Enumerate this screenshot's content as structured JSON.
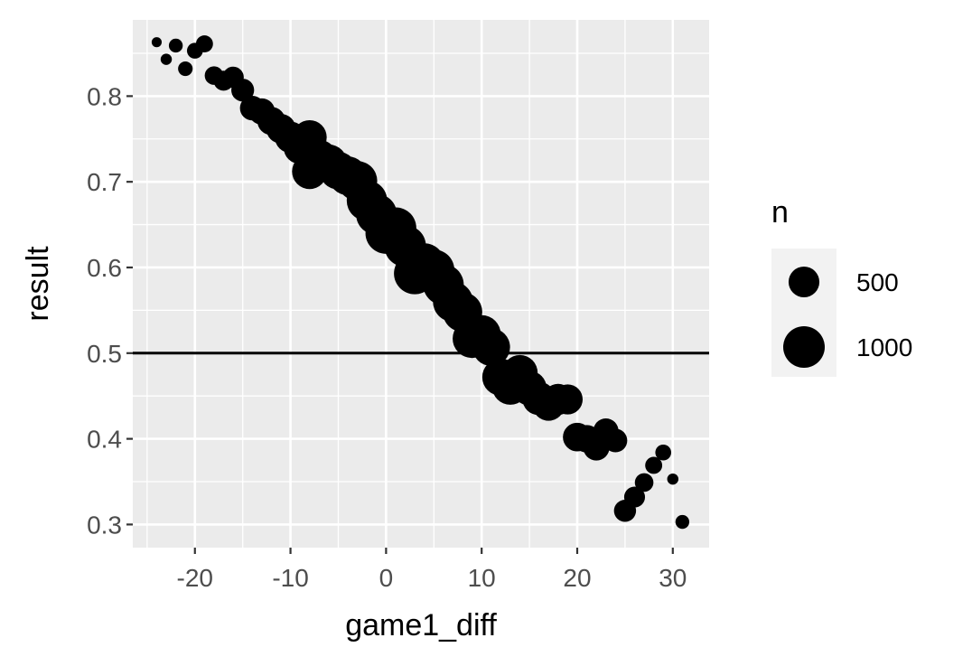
{
  "chart_data": {
    "type": "scatter",
    "title": "",
    "xlabel": "game1_diff",
    "ylabel": "result",
    "xlim": [
      -26.5,
      33.8
    ],
    "ylim": [
      0.273,
      0.889
    ],
    "x_ticks": [
      -20,
      -10,
      0,
      10,
      20,
      30
    ],
    "x_tick_labels": [
      "-20",
      "-10",
      "0",
      "10",
      "20",
      "30"
    ],
    "y_ticks": [
      0.3,
      0.4,
      0.5,
      0.6,
      0.7,
      0.8
    ],
    "y_tick_labels": [
      "0.3",
      "0.4",
      "0.5",
      "0.6",
      "0.7",
      "0.8"
    ],
    "grid": true,
    "reference_line": {
      "y": 0.5
    },
    "size_legend": {
      "title": "n",
      "placement": "right",
      "entries": [
        {
          "label": "500",
          "value": 500
        },
        {
          "label": "1000",
          "value": 1000
        }
      ]
    },
    "colors": {
      "panel": "#ebebeb",
      "grid": "#ffffff",
      "points": "#000000",
      "legend_key_bg": "#f2f2f2"
    },
    "points": [
      {
        "x": -24,
        "y": 0.863,
        "n": 20
      },
      {
        "x": -23,
        "y": 0.843,
        "n": 30
      },
      {
        "x": -22,
        "y": 0.859,
        "n": 60
      },
      {
        "x": -21,
        "y": 0.832,
        "n": 70
      },
      {
        "x": -20,
        "y": 0.853,
        "n": 90
      },
      {
        "x": -19,
        "y": 0.861,
        "n": 110
      },
      {
        "x": -18,
        "y": 0.824,
        "n": 140
      },
      {
        "x": -17,
        "y": 0.818,
        "n": 170
      },
      {
        "x": -16,
        "y": 0.822,
        "n": 200
      },
      {
        "x": -15,
        "y": 0.807,
        "n": 240
      },
      {
        "x": -14,
        "y": 0.786,
        "n": 290
      },
      {
        "x": -13,
        "y": 0.782,
        "n": 340
      },
      {
        "x": -12,
        "y": 0.771,
        "n": 400
      },
      {
        "x": -11,
        "y": 0.762,
        "n": 450
      },
      {
        "x": -10,
        "y": 0.752,
        "n": 520
      },
      {
        "x": -9,
        "y": 0.74,
        "n": 580
      },
      {
        "x": -8,
        "y": 0.752,
        "n": 640
      },
      {
        "x": -8,
        "y": 0.712,
        "n": 680
      },
      {
        "x": -7,
        "y": 0.728,
        "n": 720
      },
      {
        "x": -6,
        "y": 0.722,
        "n": 760
      },
      {
        "x": -5,
        "y": 0.713,
        "n": 800
      },
      {
        "x": -4,
        "y": 0.707,
        "n": 850
      },
      {
        "x": -3,
        "y": 0.701,
        "n": 900
      },
      {
        "x": -2,
        "y": 0.678,
        "n": 940
      },
      {
        "x": -1,
        "y": 0.662,
        "n": 960
      },
      {
        "x": 0,
        "y": 0.64,
        "n": 980
      },
      {
        "x": 1,
        "y": 0.646,
        "n": 990
      },
      {
        "x": 2,
        "y": 0.625,
        "n": 1000
      },
      {
        "x": 3,
        "y": 0.593,
        "n": 1000
      },
      {
        "x": 4,
        "y": 0.604,
        "n": 990
      },
      {
        "x": 5,
        "y": 0.597,
        "n": 970
      },
      {
        "x": 6,
        "y": 0.58,
        "n": 950
      },
      {
        "x": 7,
        "y": 0.56,
        "n": 920
      },
      {
        "x": 8,
        "y": 0.548,
        "n": 890
      },
      {
        "x": 9,
        "y": 0.517,
        "n": 860
      },
      {
        "x": 10,
        "y": 0.522,
        "n": 830
      },
      {
        "x": 11,
        "y": 0.507,
        "n": 800
      },
      {
        "x": 12,
        "y": 0.472,
        "n": 770
      },
      {
        "x": 13,
        "y": 0.461,
        "n": 740
      },
      {
        "x": 14,
        "y": 0.477,
        "n": 700
      },
      {
        "x": 15,
        "y": 0.459,
        "n": 650
      },
      {
        "x": 16,
        "y": 0.447,
        "n": 600
      },
      {
        "x": 17,
        "y": 0.44,
        "n": 560
      },
      {
        "x": 18,
        "y": 0.446,
        "n": 510
      },
      {
        "x": 19,
        "y": 0.446,
        "n": 470
      },
      {
        "x": 20,
        "y": 0.402,
        "n": 420
      },
      {
        "x": 21,
        "y": 0.4,
        "n": 380
      },
      {
        "x": 22,
        "y": 0.39,
        "n": 340
      },
      {
        "x": 23,
        "y": 0.409,
        "n": 310
      },
      {
        "x": 24,
        "y": 0.398,
        "n": 260
      },
      {
        "x": 25,
        "y": 0.316,
        "n": 220
      },
      {
        "x": 26,
        "y": 0.332,
        "n": 190
      },
      {
        "x": 27,
        "y": 0.349,
        "n": 140
      },
      {
        "x": 28,
        "y": 0.369,
        "n": 110
      },
      {
        "x": 29,
        "y": 0.384,
        "n": 90
      },
      {
        "x": 30,
        "y": 0.353,
        "n": 30
      },
      {
        "x": 31,
        "y": 0.303,
        "n": 60
      }
    ]
  }
}
